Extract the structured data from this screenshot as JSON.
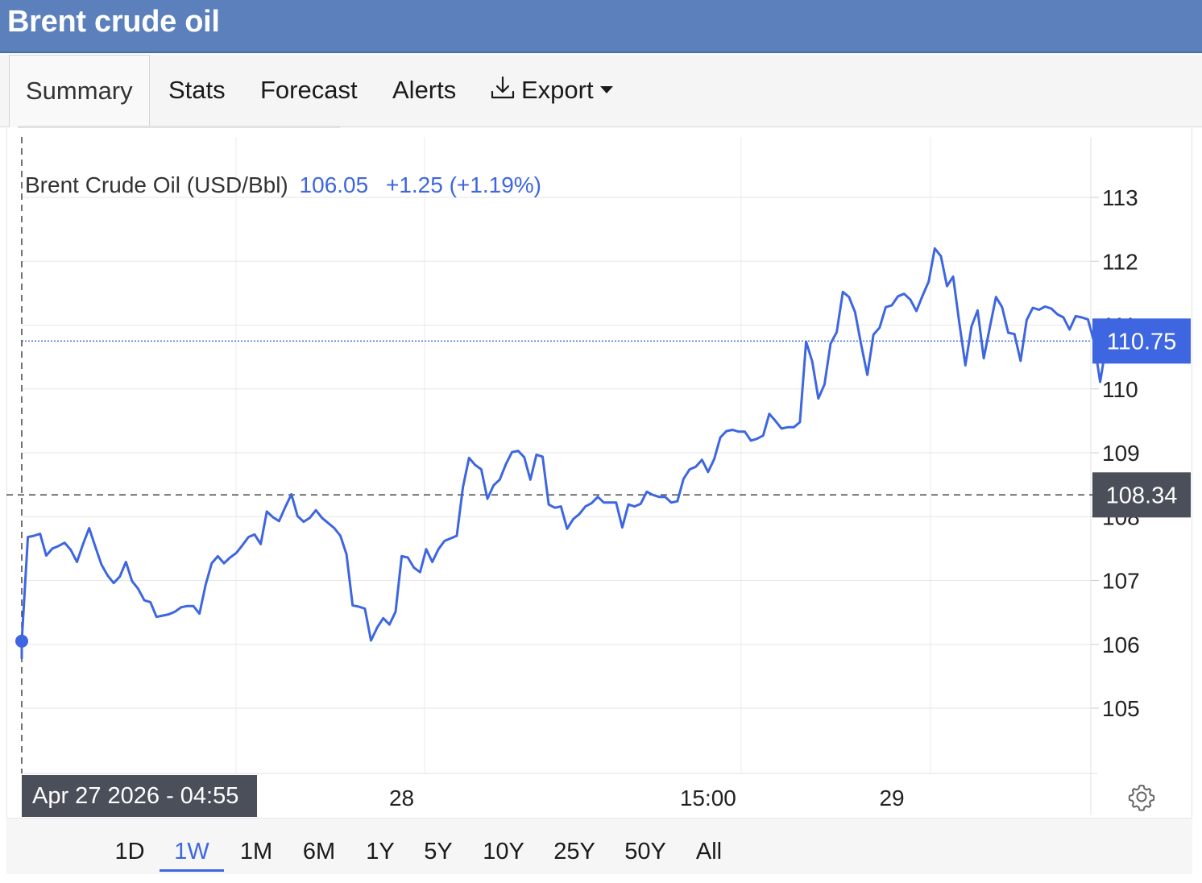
{
  "title": "Brent crude oil",
  "tabs": [
    {
      "label": "Summary",
      "active": true
    },
    {
      "label": "Stats"
    },
    {
      "label": "Forecast"
    },
    {
      "label": "Alerts"
    },
    {
      "label": "Export",
      "icon": "download-icon",
      "has_dropdown": true
    }
  ],
  "legend": {
    "name": "Brent Crude Oil (USD/Bbl)",
    "value": "106.05",
    "change": "+1.25 (+1.19%)"
  },
  "hover_date": "Apr 27 2026 - 04:55",
  "current_price_label": "110.75",
  "crosshair_price_label": "108.34",
  "ranges": [
    {
      "label": "1D"
    },
    {
      "label": "1W",
      "active": true
    },
    {
      "label": "1M"
    },
    {
      "label": "6M"
    },
    {
      "label": "1Y"
    },
    {
      "label": "5Y"
    },
    {
      "label": "10Y"
    },
    {
      "label": "25Y"
    },
    {
      "label": "50Y"
    },
    {
      "label": "All"
    }
  ],
  "colors": {
    "header": "#5b80bb",
    "line": "#3d66e0",
    "label_dark": "#4a4f5a",
    "label_blue": "#3d66e0"
  },
  "chart_data": {
    "type": "line",
    "series_name": "Brent Crude Oil (USD/Bbl)",
    "ylim": [
      104,
      114
    ],
    "y_ticks": [
      105,
      106,
      107,
      108,
      109,
      110,
      111,
      112,
      113
    ],
    "x_ticks": [
      {
        "label": "28",
        "x": 62
      },
      {
        "label": "15:00",
        "x": 112
      },
      {
        "label": "29",
        "x": 142
      }
    ],
    "xlim": [
      0,
      170
    ],
    "grid": true,
    "current_value": 110.75,
    "crosshair_value": 108.34,
    "hover_point": {
      "x": 0,
      "y": 106.05
    },
    "values": [
      106.05,
      107.68,
      107.7,
      107.73,
      107.39,
      107.5,
      107.54,
      107.59,
      107.48,
      107.29,
      107.57,
      107.82,
      107.53,
      107.25,
      107.08,
      106.96,
      107.06,
      107.29,
      106.99,
      106.87,
      106.69,
      106.66,
      106.43,
      106.45,
      106.47,
      106.51,
      106.58,
      106.6,
      106.6,
      106.48,
      106.93,
      107.27,
      107.38,
      107.27,
      107.36,
      107.43,
      107.55,
      107.68,
      107.72,
      107.57,
      108.08,
      107.99,
      107.93,
      108.15,
      108.35,
      108.01,
      107.92,
      107.98,
      108.1,
      107.98,
      107.9,
      107.82,
      107.7,
      107.41,
      106.61,
      106.59,
      106.56,
      106.06,
      106.26,
      106.41,
      106.31,
      106.51,
      107.38,
      107.36,
      107.2,
      107.13,
      107.49,
      107.29,
      107.49,
      107.62,
      107.66,
      107.7,
      108.46,
      108.92,
      108.81,
      108.74,
      108.28,
      108.49,
      108.58,
      108.82,
      109.01,
      109.03,
      108.93,
      108.58,
      108.97,
      108.94,
      108.19,
      108.14,
      108.16,
      107.81,
      107.96,
      108.04,
      108.16,
      108.21,
      108.31,
      108.22,
      108.22,
      108.22,
      107.83,
      108.19,
      108.16,
      108.2,
      108.39,
      108.34,
      108.31,
      108.31,
      108.22,
      108.24,
      108.59,
      108.74,
      108.78,
      108.89,
      108.7,
      108.9,
      109.24,
      109.34,
      109.36,
      109.33,
      109.33,
      109.19,
      109.22,
      109.27,
      109.61,
      109.5,
      109.38,
      109.4,
      109.4,
      109.48,
      110.74,
      110.43,
      109.85,
      110.07,
      110.71,
      110.89,
      111.52,
      111.44,
      111.2,
      110.69,
      110.22,
      110.85,
      110.96,
      111.28,
      111.31,
      111.45,
      111.49,
      111.4,
      111.22,
      111.46,
      111.68,
      112.2,
      112.08,
      111.61,
      111.76,
      111.04,
      110.37,
      110.98,
      111.23,
      110.48,
      110.97,
      111.44,
      111.28,
      110.88,
      110.86,
      110.44,
      111.08,
      111.27,
      111.24,
      111.29,
      111.26,
      111.17,
      111.12,
      110.93,
      111.14,
      111.12,
      111.09,
      110.74,
      110.11,
      110.7,
      110.8,
      110.88,
      110.84,
      110.75
    ]
  }
}
